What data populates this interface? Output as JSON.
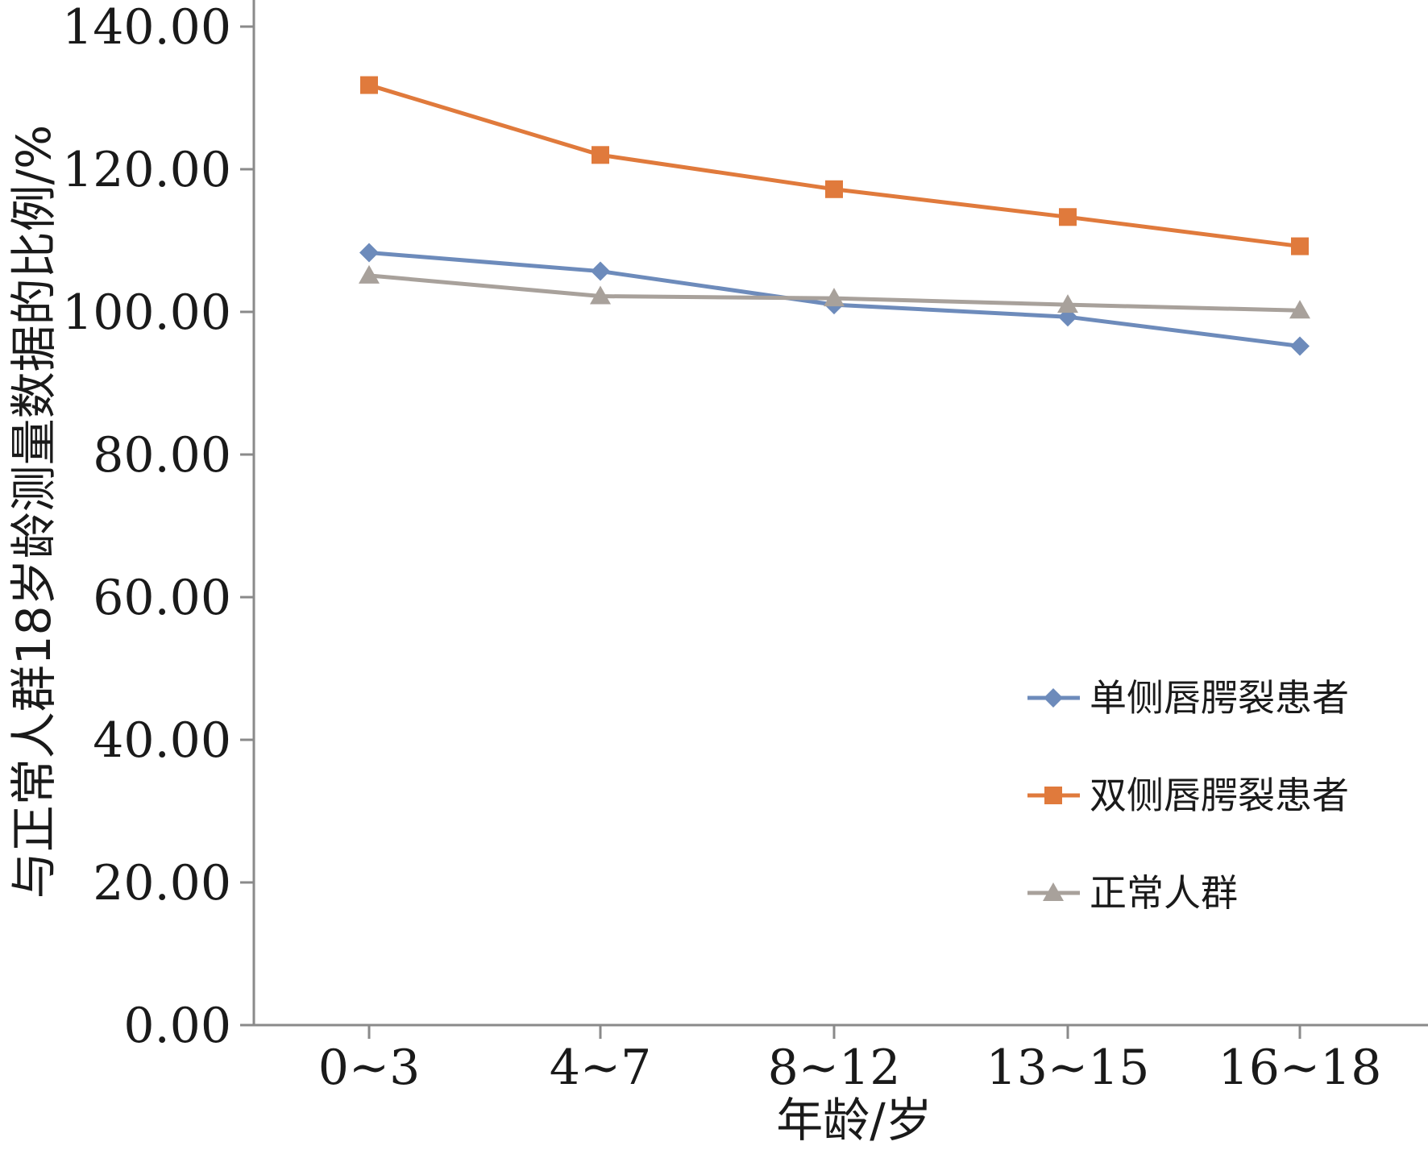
{
  "chart_data": {
    "type": "line",
    "categories": [
      "0~3",
      "4~7",
      "8~12",
      "13~15",
      "16~18"
    ],
    "xlabel": "年龄/岁",
    "ylabel": "与正常人群18岁龄测量数据的比例/%",
    "ylim": [
      0,
      140
    ],
    "yticks": [
      "0.00",
      "20.00",
      "40.00",
      "60.00",
      "80.00",
      "100.00",
      "120.00",
      "140.00"
    ],
    "grid": false,
    "legend_position": "right",
    "series": [
      {
        "name": "单侧唇腭裂患者",
        "values": [
          108.3,
          105.7,
          101.0,
          99.3,
          95.2
        ],
        "color": "#6d8bbb",
        "marker": "diamond"
      },
      {
        "name": "双侧唇腭裂患者",
        "values": [
          131.8,
          122.0,
          117.2,
          113.3,
          109.2
        ],
        "color": "#e07a3c",
        "marker": "square"
      },
      {
        "name": "正常人群",
        "values": [
          105.1,
          102.2,
          101.9,
          101.0,
          100.2
        ],
        "color": "#a8a19b",
        "marker": "triangle"
      }
    ]
  }
}
